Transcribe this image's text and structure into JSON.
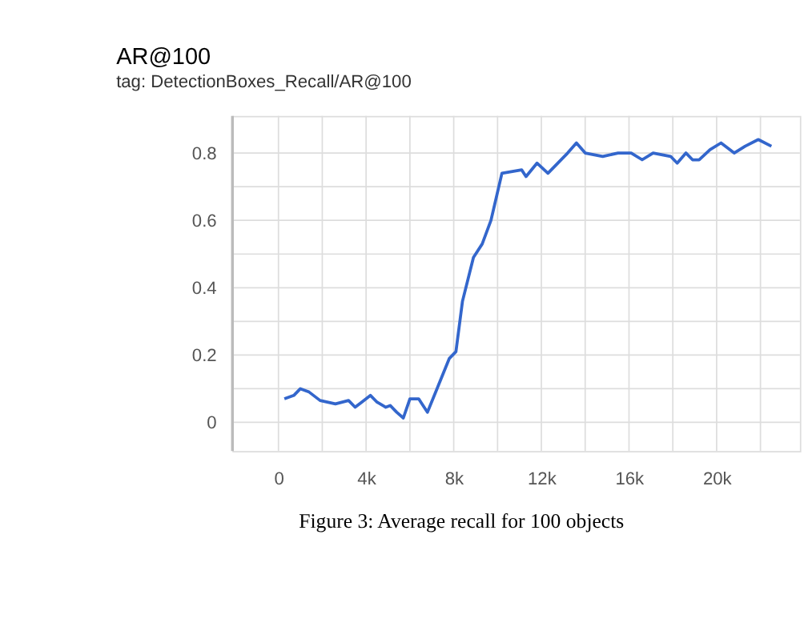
{
  "chart_data": {
    "type": "line",
    "title": "AR@100",
    "subtitle": "tag: DetectionBoxes_Recall/AR@100",
    "x": [
      270,
      700,
      1000,
      1400,
      1900,
      2600,
      3200,
      3500,
      3800,
      4200,
      4500,
      4900,
      5100,
      5400,
      5700,
      6000,
      6400,
      6800,
      7300,
      7800,
      8100,
      8400,
      8900,
      9300,
      9700,
      10200,
      11100,
      11300,
      11800,
      12300,
      13200,
      13600,
      14000,
      14800,
      15500,
      16100,
      16600,
      17100,
      17900,
      18200,
      18600,
      18900,
      19200,
      19700,
      20200,
      20800,
      21300,
      21900,
      22500
    ],
    "series": [
      {
        "color": "#3366cc",
        "values": [
          0.07,
          0.08,
          0.1,
          0.09,
          0.065,
          0.055,
          0.065,
          0.045,
          0.06,
          0.08,
          0.06,
          0.045,
          0.05,
          0.03,
          0.013,
          0.07,
          0.07,
          0.03,
          0.11,
          0.19,
          0.21,
          0.36,
          0.49,
          0.53,
          0.6,
          0.74,
          0.75,
          0.73,
          0.77,
          0.74,
          0.8,
          0.83,
          0.8,
          0.79,
          0.8,
          0.8,
          0.78,
          0.8,
          0.79,
          0.77,
          0.8,
          0.78,
          0.78,
          0.81,
          0.83,
          0.8,
          0.82,
          0.84,
          0.82
        ]
      }
    ],
    "xlim": [
      -2100,
      23800
    ],
    "xticks": [
      {
        "value": 0,
        "label": "0"
      },
      {
        "value": 2000,
        "label": null
      },
      {
        "value": 4000,
        "label": "4k"
      },
      {
        "value": 6000,
        "label": null
      },
      {
        "value": 8000,
        "label": "8k"
      },
      {
        "value": 10000,
        "label": null
      },
      {
        "value": 12000,
        "label": "12k"
      },
      {
        "value": 14000,
        "label": null
      },
      {
        "value": 16000,
        "label": "16k"
      },
      {
        "value": 18000,
        "label": null
      },
      {
        "value": 20000,
        "label": "20k"
      },
      {
        "value": 22000,
        "label": null
      }
    ],
    "ylim": [
      -0.085,
      0.91
    ],
    "yticks": [
      0,
      {
        "value": 0.1,
        "label": null
      },
      0.2,
      {
        "value": 0.3,
        "label": null
      },
      0.4,
      {
        "value": 0.5,
        "label": null
      },
      0.6,
      {
        "value": 0.7,
        "label": null
      },
      0.8
    ],
    "grid": true,
    "annotations": [
      "Figure 3: Average recall for 100 objects"
    ]
  }
}
